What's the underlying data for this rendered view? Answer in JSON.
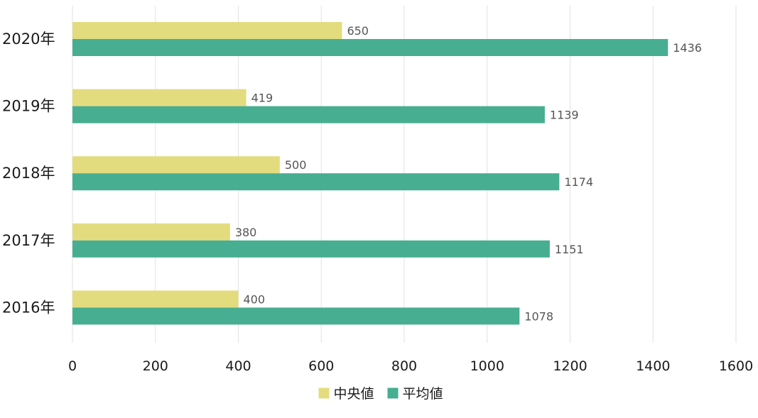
{
  "chart_data": {
    "type": "bar",
    "orientation": "horizontal",
    "categories": [
      "2020年",
      "2019年",
      "2018年",
      "2017年",
      "2016年"
    ],
    "series": [
      {
        "name": "中央値",
        "color": "#e3dc7e",
        "values": [
          650,
          419,
          500,
          380,
          400
        ]
      },
      {
        "name": "平均値",
        "color": "#47ae91",
        "values": [
          1436,
          1139,
          1174,
          1151,
          1078
        ]
      }
    ],
    "xlim": [
      0,
      1600
    ],
    "xticks": [
      0,
      200,
      400,
      600,
      800,
      1000,
      1200,
      1400,
      1600
    ],
    "title": "",
    "xlabel": "",
    "ylabel": "",
    "grid": "vertical",
    "legend": "bottom-center",
    "data_labels": true
  }
}
